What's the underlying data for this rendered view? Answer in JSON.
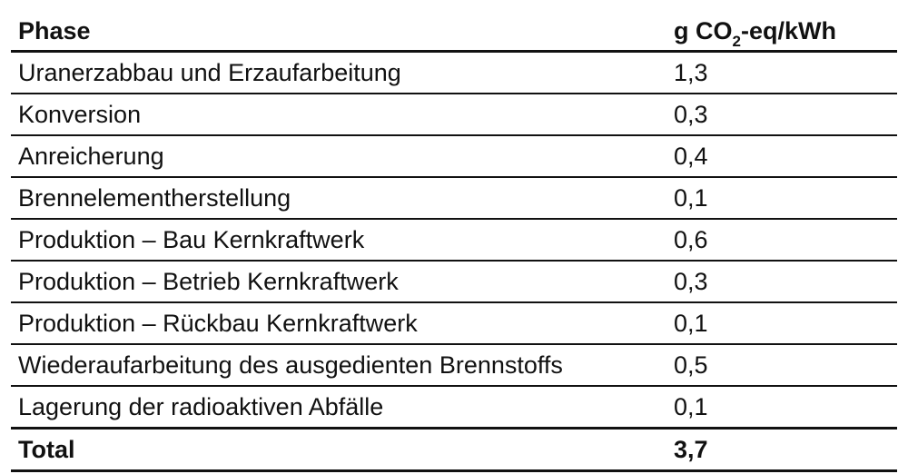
{
  "table": {
    "header": {
      "phase": "Phase",
      "value_prefix": "g CO",
      "value_sub": "2",
      "value_suffix": "-eq/kWh"
    },
    "rows": [
      {
        "phase": "Uranerzabbau und Erzaufarbeitung",
        "value": "1,3"
      },
      {
        "phase": "Konversion",
        "value": "0,3"
      },
      {
        "phase": "Anreicherung",
        "value": "0,4"
      },
      {
        "phase": "Brennelementherstellung",
        "value": "0,1"
      },
      {
        "phase": "Produktion – Bau Kernkraftwerk",
        "value": "0,6"
      },
      {
        "phase": "Produktion – Betrieb Kernkraftwerk",
        "value": "0,3"
      },
      {
        "phase": "Produktion – Rückbau Kernkraftwerk",
        "value": "0,1"
      },
      {
        "phase": "Wiederaufarbeitung des ausgedienten Brennstoffs",
        "value": "0,5"
      },
      {
        "phase": "Lagerung der radioaktiven Abfälle",
        "value": "0,1"
      }
    ],
    "total": {
      "label": "Total",
      "value": "3,7"
    }
  }
}
